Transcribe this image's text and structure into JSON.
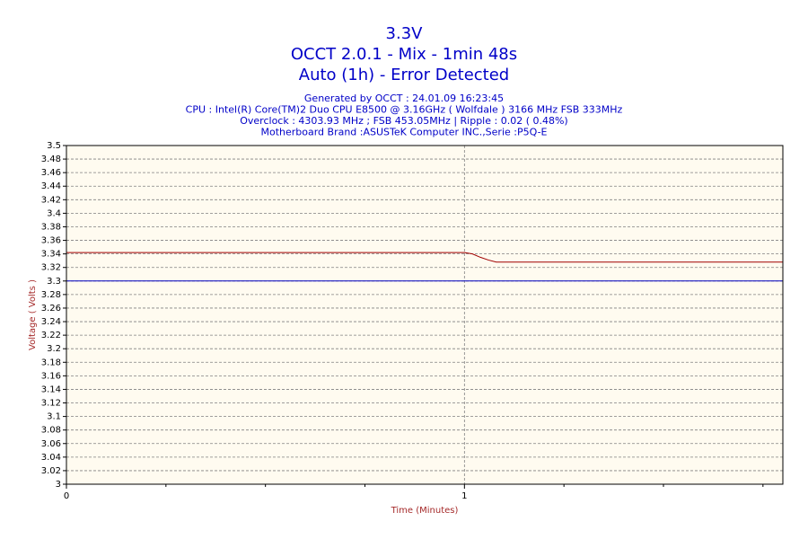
{
  "chart_data": {
    "type": "line",
    "title": [
      "3.3V",
      "OCCT 2.0.1 - Mix - 1min 48s",
      "Auto (1h) - Error Detected"
    ],
    "subtitle": [
      "Generated by OCCT : 24.01.09 16:23:45",
      "CPU : Intel(R) Core(TM)2 Duo CPU E8500 @ 3.16GHz ( Wolfdale ) 3166 MHz FSB 333MHz",
      "Overclock : 4303.93 MHz ; FSB 453.05MHz | Ripple : 0.02 ( 0.48%)",
      "Motherboard Brand :ASUSTeK Computer INC.,Serie :P5Q-E"
    ],
    "x_label": "Time (Minutes)",
    "y_label": "Voltage ( Volts )",
    "xlim": [
      0,
      1.8
    ],
    "xticks": [
      0,
      1
    ],
    "xminor_ticks": [
      0.25,
      0.5,
      0.75,
      1.25,
      1.5,
      1.75
    ],
    "ylim": [
      3,
      3.5
    ],
    "yticks": [
      3,
      3.02,
      3.04,
      3.06,
      3.08,
      3.1,
      3.12,
      3.14,
      3.16,
      3.18,
      3.2,
      3.22,
      3.24,
      3.26,
      3.28,
      3.3,
      3.32,
      3.34,
      3.36,
      3.38,
      3.4,
      3.42,
      3.44,
      3.46,
      3.48,
      3.5
    ],
    "grid": true,
    "plot_background": "#fffbf0",
    "series": [
      {
        "color": "#a00000",
        "x": [
          0,
          1,
          1.02,
          1.04,
          1.06,
          1.08,
          1.8
        ],
        "values": [
          3.342,
          3.342,
          3.34,
          3.335,
          3.331,
          3.328,
          3.328
        ]
      },
      {
        "color": "#0000c0",
        "x": [
          0,
          1.8
        ],
        "values": [
          3.3,
          3.3
        ]
      }
    ]
  }
}
